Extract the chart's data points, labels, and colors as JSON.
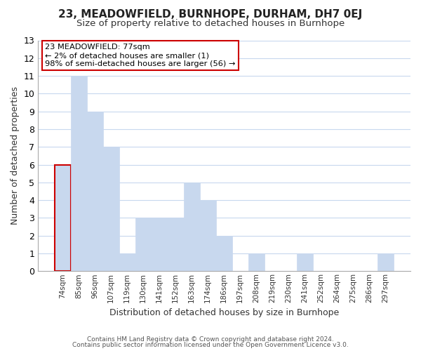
{
  "title": "23, MEADOWFIELD, BURNHOPE, DURHAM, DH7 0EJ",
  "subtitle": "Size of property relative to detached houses in Burnhope",
  "xlabel": "Distribution of detached houses by size in Burnhope",
  "ylabel": "Number of detached properties",
  "footer_line1": "Contains HM Land Registry data © Crown copyright and database right 2024.",
  "footer_line2": "Contains public sector information licensed under the Open Government Licence v3.0.",
  "bar_labels": [
    "74sqm",
    "85sqm",
    "96sqm",
    "107sqm",
    "119sqm",
    "130sqm",
    "141sqm",
    "152sqm",
    "163sqm",
    "174sqm",
    "186sqm",
    "197sqm",
    "208sqm",
    "219sqm",
    "230sqm",
    "241sqm",
    "252sqm",
    "264sqm",
    "275sqm",
    "286sqm",
    "297sqm"
  ],
  "bar_values": [
    6,
    11,
    9,
    7,
    1,
    3,
    3,
    3,
    5,
    4,
    2,
    0,
    1,
    0,
    0,
    1,
    0,
    0,
    0,
    0,
    1
  ],
  "bar_color": "#c8d8ee",
  "highlight_bar_index": 0,
  "highlight_border_color": "#cc0000",
  "annotation_title": "23 MEADOWFIELD: 77sqm",
  "annotation_line2": "← 2% of detached houses are smaller (1)",
  "annotation_line3": "98% of semi-detached houses are larger (56) →",
  "ylim": [
    0,
    13
  ],
  "yticks": [
    0,
    1,
    2,
    3,
    4,
    5,
    6,
    7,
    8,
    9,
    10,
    11,
    12,
    13
  ],
  "background_color": "#ffffff",
  "grid_color": "#c8d8ee",
  "title_fontsize": 11,
  "subtitle_fontsize": 9.5
}
